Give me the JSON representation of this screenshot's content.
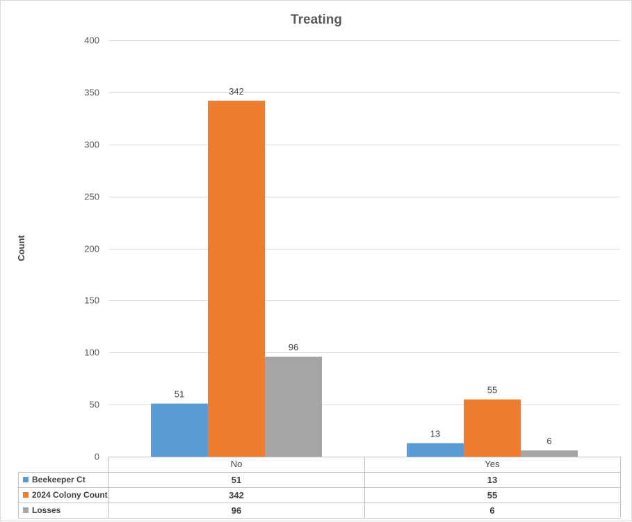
{
  "chart_data": {
    "type": "bar",
    "title": "Treating",
    "ylabel": "Count",
    "xlabel": "",
    "ylim": [
      0,
      400
    ],
    "yticks": [
      0,
      50,
      100,
      150,
      200,
      250,
      300,
      350,
      400
    ],
    "grid": true,
    "legend": "data-table",
    "categories": [
      "No",
      "Yes"
    ],
    "series": [
      {
        "name": "Beekeeper Ct",
        "color": "#5b9bd5",
        "values": [
          51,
          13
        ]
      },
      {
        "name": "2024 Colony Count",
        "color": "#ed7d31",
        "values": [
          342,
          55
        ]
      },
      {
        "name": "Losses",
        "color": "#a5a5a5",
        "values": [
          96,
          6
        ]
      }
    ]
  }
}
